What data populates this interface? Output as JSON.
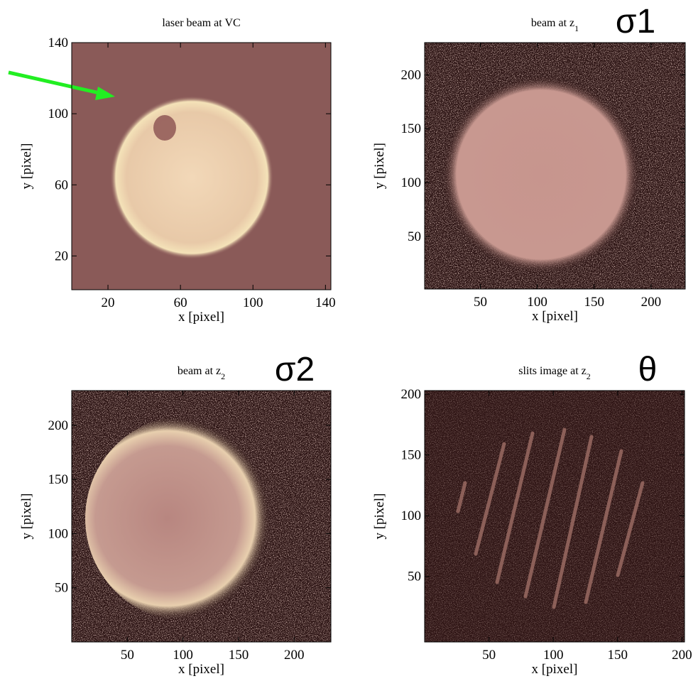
{
  "chart_data": [
    {
      "type": "image",
      "title": "laser beam at VC",
      "x_label": "x [pixel]",
      "y_label": "y [pixel]",
      "xlim": [
        0,
        143
      ],
      "ylim": [
        1,
        140
      ],
      "xticks": [
        20,
        60,
        100,
        140
      ],
      "yticks": [
        20,
        60,
        100,
        140
      ]
    },
    {
      "type": "image",
      "title": "beam at z",
      "title_subscript": "1",
      "annotation": "σ1",
      "x_label": "x [pixel]",
      "y_label": "y [pixel]",
      "xlim": [
        1,
        230
      ],
      "ylim": [
        1,
        230
      ],
      "xticks": [
        50,
        100,
        150,
        200
      ],
      "yticks": [
        50,
        100,
        150,
        200
      ]
    },
    {
      "type": "image",
      "title": "beam at z",
      "title_subscript": "2",
      "annotation": "σ2",
      "x_label": "x [pixel]",
      "y_label": "y [pixel]",
      "xlim": [
        0,
        233
      ],
      "ylim": [
        0,
        232
      ],
      "xticks": [
        50,
        100,
        150,
        200
      ],
      "yticks": [
        50,
        100,
        150,
        200
      ]
    },
    {
      "type": "image",
      "title": "slits image at z",
      "title_subscript": "2",
      "annotation": "θ",
      "x_label": "x [pixel]",
      "y_label": "y [pixel]",
      "xlim": [
        0,
        202
      ],
      "ylim": [
        -4,
        203
      ],
      "xticks": [
        50,
        100,
        150,
        200
      ],
      "yticks": [
        50,
        100,
        150,
        200
      ]
    }
  ]
}
